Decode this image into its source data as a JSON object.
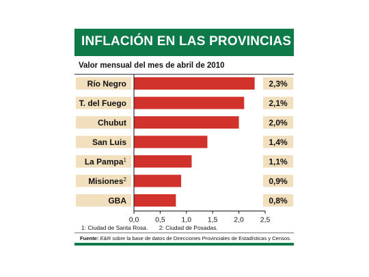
{
  "title": "INFLACIÓN EN LAS PROVINCIAS",
  "subtitle": "Valor mensual del mes de abril de 2010",
  "colors": {
    "banner": "#0e7a4a",
    "bar": "#d1332c",
    "label_box": "#f1dfbe"
  },
  "chart_data": {
    "type": "bar",
    "orientation": "horizontal",
    "categories": [
      "Río Negro",
      "T. del Fuego",
      "Chubut",
      "San Luis",
      "La Pampa",
      "Misiones",
      "GBA"
    ],
    "footnote_marks": [
      "",
      "",
      "",
      "",
      "1",
      "2",
      ""
    ],
    "values": [
      2.3,
      2.1,
      2.0,
      1.4,
      1.1,
      0.9,
      0.8
    ],
    "value_labels": [
      "2,3%",
      "2,1%",
      "2,0%",
      "1,4%",
      "1,1%",
      "0,9%",
      "0,8%"
    ],
    "xlim": [
      0,
      2.5
    ],
    "xticks": [
      0,
      0.5,
      1.0,
      1.5,
      2.0,
      2.5
    ],
    "xtick_labels": [
      "0,0",
      "0,5",
      "1,0",
      "1,5",
      "2,0",
      "2,5"
    ],
    "grid": false
  },
  "footnotes": [
    "1: Ciudad de Santa Rosa.",
    "2: Ciudad de Posadas."
  ],
  "source": {
    "label": "Fuente:",
    "text": "E&R sobre la base de datos de Direcciones Provinciales de Estadísticas y Censos."
  }
}
